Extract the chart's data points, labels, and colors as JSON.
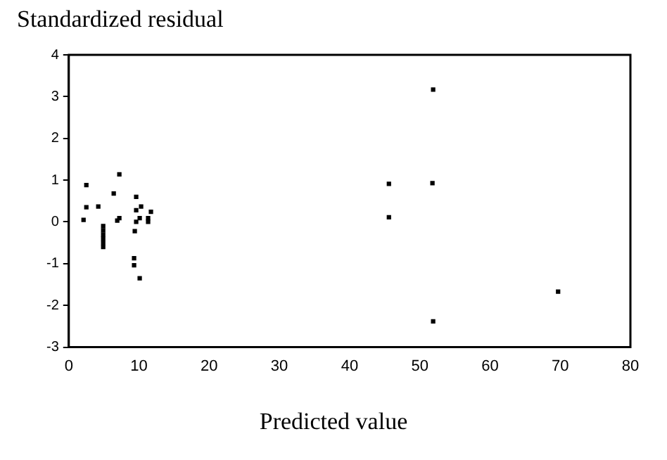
{
  "chart_data": {
    "type": "scatter",
    "ylabel": "Standardized residual",
    "xlabel": "Predicted value",
    "x": [
      2.5,
      2.1,
      2.5,
      4.2,
      4.9,
      4.9,
      4.9,
      4.9,
      4.9,
      4.9,
      6.4,
      7.2,
      6.9,
      7.2,
      9.6,
      9.6,
      10.3,
      9.6,
      9.4,
      10.1,
      11.3,
      11.3,
      11.7,
      9.3,
      9.3,
      10.1,
      51.9,
      45.6,
      51.8,
      45.6,
      69.7,
      51.9
    ],
    "values": [
      0.88,
      0.05,
      0.35,
      0.37,
      -0.1,
      -0.2,
      -0.3,
      -0.4,
      -0.5,
      -0.6,
      0.68,
      1.14,
      0.03,
      0.09,
      0.6,
      0.28,
      0.37,
      0.0,
      -0.22,
      0.09,
      0.09,
      0.0,
      0.24,
      -0.87,
      -1.04,
      -1.35,
      3.17,
      0.91,
      0.93,
      0.11,
      -1.67,
      -2.38
    ],
    "color": "#000000",
    "marker": "square",
    "grid": false,
    "legend": false,
    "xlim": [
      0,
      80
    ],
    "xticks": [
      0,
      10,
      20,
      30,
      40,
      50,
      60,
      70,
      80
    ],
    "ylim": [
      -3,
      4
    ],
    "yticks": [
      -3,
      -2,
      -1,
      0,
      1,
      2,
      3,
      4
    ]
  }
}
